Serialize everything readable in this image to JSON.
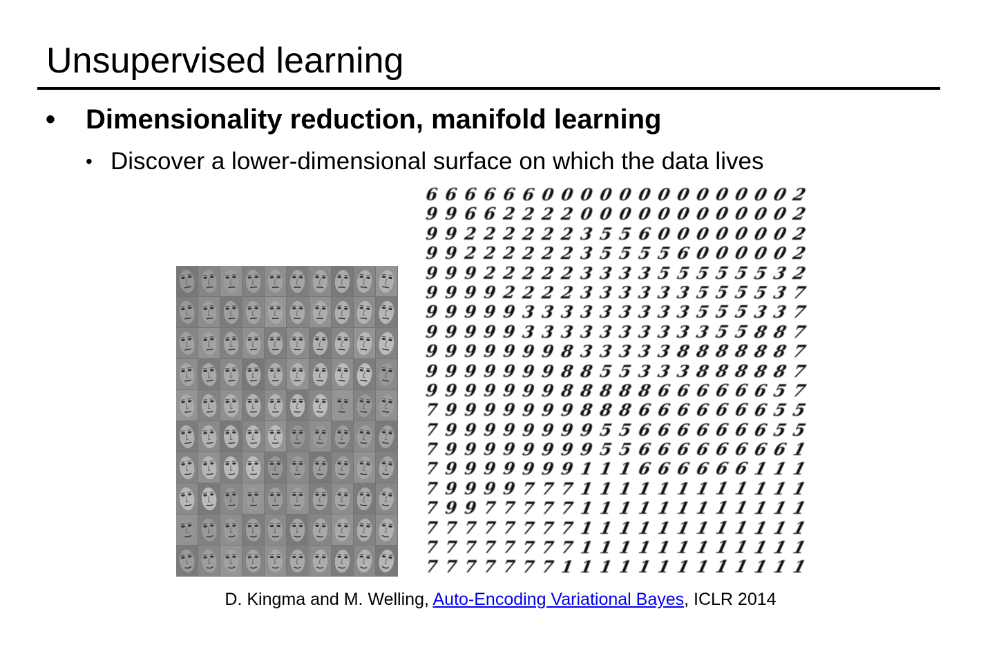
{
  "slide": {
    "title": "Unsupervised learning",
    "bullet_symbol": "•",
    "bullet": "Dimensionality reduction, manifold learning",
    "sub_bullet_symbol": "•",
    "sub_bullet": "Discover a lower-dimensional surface on which the data lives"
  },
  "digit_manifold": {
    "rows": [
      "66666600000000000002",
      "99662222000000000002",
      "99222222355600000002",
      "99222222355556000002",
      "99922222333355555532",
      "99992222333333555537",
      "99999333333333555337",
      "99999333333333355887",
      "99999998333338888887",
      "99999998855333888887",
      "99999998888866666657",
      "79999999888666666655",
      "79999999955666666655",
      "79999999955666666661",
      "79999999111666666111",
      "79999777111111111111",
      "79977777111111111111",
      "77777777111111111111",
      "77777777111111111111",
      "77777771111111111111"
    ]
  },
  "face_manifold": {
    "rows": 10,
    "cols": 10
  },
  "citation": {
    "prefix": "D. Kingma and M. Welling, ",
    "link_text": "Auto-Encoding Variational Bayes",
    "suffix": ", ICLR 2014",
    "link_color": "#0000ee"
  }
}
